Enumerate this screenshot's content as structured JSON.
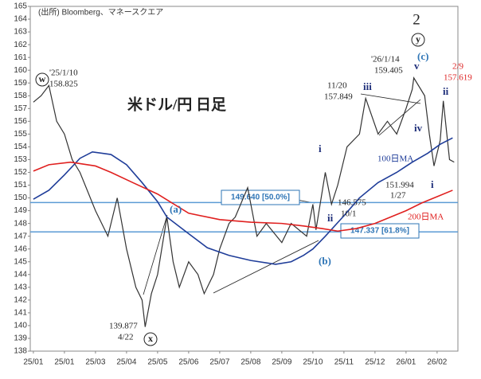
{
  "chart_data": {
    "type": "line",
    "title": "米ドル/円 日足",
    "source": "(出所) Bloomberg、マネースクエア",
    "xlim": [
      -0.1,
      13.67
    ],
    "xticks": [
      {
        "value": 0,
        "label": "25/01"
      },
      {
        "value": 1,
        "label": "25/01"
      },
      {
        "value": 2,
        "label": "25/03"
      },
      {
        "value": 3,
        "label": "25/04"
      },
      {
        "value": 4,
        "label": "25/05"
      },
      {
        "value": 5,
        "label": "25/06"
      },
      {
        "value": 6,
        "label": "25/07"
      },
      {
        "value": 7,
        "label": "25/08"
      },
      {
        "value": 8,
        "label": "25/09"
      },
      {
        "value": 9,
        "label": "25/10"
      },
      {
        "value": 10,
        "label": "25/11"
      },
      {
        "value": 11,
        "label": "25/12"
      },
      {
        "value": 12,
        "label": "26/01"
      },
      {
        "value": 13,
        "label": "26/02"
      }
    ],
    "ylim": [
      138,
      165
    ],
    "yticks": [
      138,
      139,
      140,
      141,
      142,
      143,
      144,
      145,
      146,
      147,
      148,
      149,
      150,
      151,
      152,
      153,
      154,
      155,
      156,
      157,
      158,
      159,
      160,
      161,
      162,
      163,
      164,
      165
    ],
    "series": [
      {
        "color": "#333333",
        "x": [
          0,
          0.25,
          0.5,
          0.75,
          1.0,
          1.25,
          1.5,
          1.75,
          2.0,
          2.2,
          2.4,
          2.7,
          3.0,
          3.3,
          3.5,
          3.6,
          3.8,
          4.0,
          4.3,
          4.5,
          4.7,
          5.0,
          5.3,
          5.5,
          5.8,
          6.0,
          6.3,
          6.5,
          6.9,
          7.2,
          7.5,
          8.0,
          8.3,
          8.8,
          9.0,
          9.1,
          9.4,
          9.6,
          9.8,
          10.1,
          10.5,
          10.7,
          11.1,
          11.4,
          11.7,
          12.0,
          12.2,
          12.25,
          12.6,
          12.75,
          12.9,
          13.1,
          13.2,
          13.4,
          13.55
        ],
        "values": [
          157.5,
          158,
          158.8,
          156,
          155,
          153,
          152,
          150.5,
          149,
          148,
          147,
          150,
          146,
          143,
          142,
          139.9,
          142.5,
          144,
          148.5,
          145,
          143,
          145,
          144,
          142.5,
          144,
          146,
          148,
          148.5,
          150.8,
          147,
          148,
          146.5,
          148,
          147,
          149.5,
          147.5,
          152,
          149.5,
          151,
          154,
          155,
          157.8,
          155,
          156,
          155,
          157,
          158.5,
          159.4,
          158,
          155,
          152.5,
          154.5,
          157.6,
          153,
          152.8
        ]
      },
      {
        "name": "100日MA",
        "color": "#1f3d99",
        "x": [
          0,
          0.5,
          1.0,
          1.5,
          1.9,
          2.5,
          3.0,
          3.5,
          4.0,
          4.3,
          5.0,
          5.6,
          6.3,
          7.0,
          7.8,
          8.3,
          8.7,
          9.0,
          9.4,
          10.0,
          10.5,
          11.1,
          11.7,
          12.2,
          12.7,
          13.1,
          13.5
        ],
        "values": [
          149.9,
          150.6,
          151.8,
          153.1,
          153.6,
          153.4,
          152.6,
          151.2,
          149.7,
          148.5,
          147.2,
          146.1,
          145.5,
          145.1,
          144.8,
          145,
          145.5,
          146,
          147,
          148.6,
          150,
          151.2,
          152,
          152.8,
          153.5,
          154.2,
          154.7
        ]
      },
      {
        "name": "200日MA",
        "color": "#e0201f",
        "x": [
          0,
          0.5,
          1.2,
          2.0,
          2.5,
          3.2,
          4.0,
          5.0,
          6.0,
          7.0,
          8.0,
          8.7,
          9.3,
          9.8,
          10.4,
          11.0,
          11.5,
          12.0,
          12.5,
          13.0,
          13.5
        ],
        "values": [
          152.1,
          152.6,
          152.8,
          152.5,
          152,
          151.2,
          150.3,
          148.8,
          148.3,
          148.1,
          148,
          147.8,
          147.6,
          147.4,
          147.6,
          148,
          148.5,
          149,
          149.6,
          150.1,
          150.6
        ]
      }
    ],
    "hlines": [
      {
        "value": 149.64,
        "label": "149.640 [50.0%]"
      },
      {
        "value": 147.337,
        "label": "147.337 [61.8%]"
      }
    ],
    "annotations": [
      "'25/1/10",
      "158.825",
      "139.877",
      "4/22",
      "'26/1/14",
      "159.405",
      "11/20",
      "157.849",
      "146.575",
      "10/1",
      "151.994",
      "1/27",
      "2/9",
      "157.619",
      "2",
      "y",
      "w",
      "x",
      "(c)",
      "(a)",
      "(b)",
      "i",
      "ii",
      "iii",
      "iv",
      "v",
      "i",
      "ii"
    ]
  }
}
